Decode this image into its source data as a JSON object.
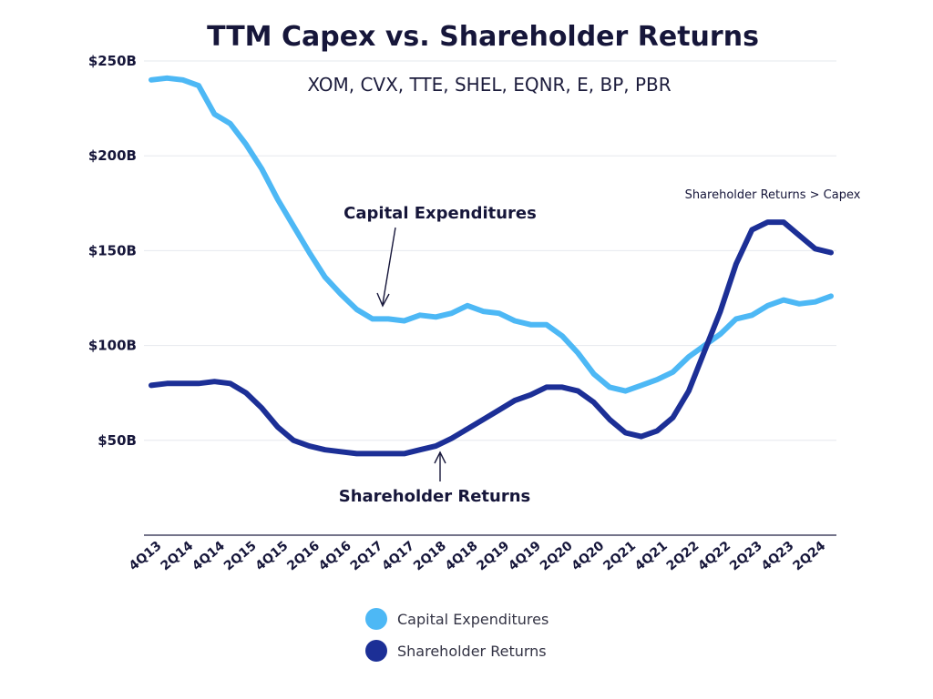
{
  "chart_data": {
    "type": "line",
    "title": "TTM Capex vs. Shareholder Returns",
    "subtitle": "XOM, CVX, TTE, SHEL, EQNR, E, BP, PBR",
    "xlabel": "",
    "ylabel": "",
    "ylim": [
      0,
      250
    ],
    "yticks": [
      {
        "value": 50,
        "label": "$50B"
      },
      {
        "value": 100,
        "label": "$100B"
      },
      {
        "value": 150,
        "label": "$150B"
      },
      {
        "value": 200,
        "label": "$200B"
      },
      {
        "value": 250,
        "label": "$250B"
      }
    ],
    "grid": true,
    "legend_position": "bottom-center",
    "x": [
      "4Q13",
      "1Q14",
      "2Q14",
      "3Q14",
      "4Q14",
      "1Q15",
      "2Q15",
      "3Q15",
      "4Q15",
      "1Q16",
      "2Q16",
      "3Q16",
      "4Q16",
      "1Q17",
      "2Q17",
      "3Q17",
      "4Q17",
      "1Q18",
      "2Q18",
      "3Q18",
      "4Q18",
      "1Q19",
      "2Q19",
      "3Q19",
      "4Q19",
      "1Q20",
      "2Q20",
      "3Q20",
      "4Q20",
      "1Q21",
      "2Q21",
      "3Q21",
      "4Q21",
      "1Q22",
      "2Q22",
      "3Q22",
      "4Q22",
      "1Q23",
      "2Q23",
      "3Q23",
      "4Q23",
      "1Q24",
      "2Q24",
      "3Q24"
    ],
    "x_tick_labels": [
      "4Q13",
      "2Q14",
      "4Q14",
      "2Q15",
      "4Q15",
      "2Q16",
      "4Q16",
      "2Q17",
      "4Q17",
      "2Q18",
      "4Q18",
      "2Q19",
      "4Q19",
      "2Q20",
      "4Q20",
      "2Q21",
      "4Q21",
      "2Q22",
      "4Q22",
      "2Q23",
      "4Q23",
      "2Q24"
    ],
    "series": [
      {
        "name": "Capital Expenditures",
        "color": "#4db8f5",
        "values": [
          240,
          241,
          240,
          237,
          222,
          217,
          206,
          193,
          177,
          163,
          149,
          136,
          127,
          119,
          114,
          114,
          113,
          116,
          115,
          117,
          121,
          118,
          117,
          113,
          111,
          111,
          105,
          96,
          85,
          78,
          76,
          79,
          82,
          86,
          94,
          100,
          106,
          114,
          116,
          121,
          124,
          122,
          123,
          126
        ]
      },
      {
        "name": "Shareholder Returns",
        "color": "#1c2f96",
        "values": [
          79,
          80,
          80,
          80,
          81,
          80,
          75,
          67,
          57,
          50,
          47,
          45,
          44,
          43,
          43,
          43,
          43,
          45,
          47,
          51,
          56,
          61,
          66,
          71,
          74,
          78,
          78,
          76,
          70,
          61,
          54,
          52,
          55,
          62,
          76,
          97,
          118,
          143,
          161,
          165,
          165,
          158,
          151,
          149
        ]
      }
    ],
    "annotations": {
      "capex_label": "Capital Expenditures",
      "returns_label": "Shareholder Returns",
      "note": "Shareholder Returns > Capex"
    }
  }
}
